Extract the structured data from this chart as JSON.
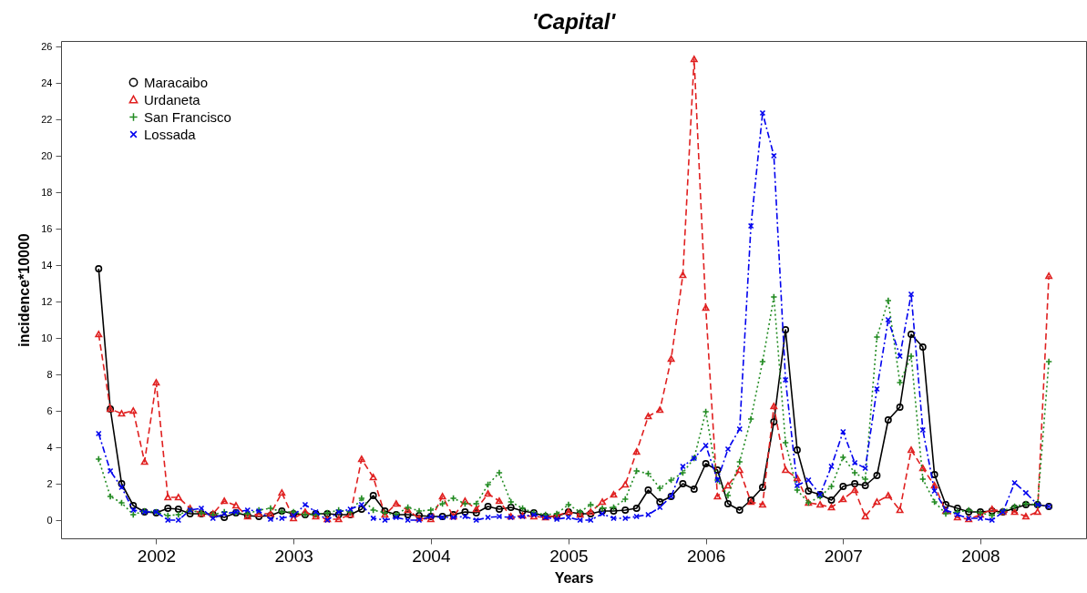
{
  "chart_data": {
    "type": "line",
    "title": "'Capital'",
    "xlabel": "Years",
    "ylabel": "incidence*10000",
    "x": [
      "2001-08",
      "2001-09",
      "2001-10",
      "2001-11",
      "2001-12",
      "2002-01",
      "2002-02",
      "2002-03",
      "2002-04",
      "2002-05",
      "2002-06",
      "2002-07",
      "2002-08",
      "2002-09",
      "2002-10",
      "2002-11",
      "2002-12",
      "2003-01",
      "2003-02",
      "2003-03",
      "2003-04",
      "2003-05",
      "2003-06",
      "2003-07",
      "2003-08",
      "2003-09",
      "2003-10",
      "2003-11",
      "2003-12",
      "2004-01",
      "2004-02",
      "2004-03",
      "2004-04",
      "2004-05",
      "2004-06",
      "2004-07",
      "2004-08",
      "2004-09",
      "2004-10",
      "2004-11",
      "2004-12",
      "2005-01",
      "2005-02",
      "2005-03",
      "2005-04",
      "2005-05",
      "2005-06",
      "2005-07",
      "2005-08",
      "2005-09",
      "2005-10",
      "2005-11",
      "2005-12",
      "2006-01",
      "2006-02",
      "2006-03",
      "2006-04",
      "2006-05",
      "2006-06",
      "2006-07",
      "2006-08",
      "2006-09",
      "2006-10",
      "2006-11",
      "2006-12",
      "2007-01",
      "2007-02",
      "2007-03",
      "2007-04",
      "2007-05",
      "2007-06",
      "2007-07",
      "2007-08",
      "2007-09",
      "2007-10",
      "2007-11",
      "2007-12",
      "2008-01",
      "2008-02",
      "2008-03",
      "2008-04",
      "2008-05",
      "2008-06",
      "2008-07"
    ],
    "series": [
      {
        "name": "Maracaibo",
        "color": "#000000",
        "marker": "circle",
        "line_style": "solid",
        "values": [
          13.8,
          6.1,
          2.0,
          0.8,
          0.45,
          0.4,
          0.65,
          0.6,
          0.35,
          0.35,
          0.3,
          0.15,
          0.4,
          0.25,
          0.2,
          0.25,
          0.5,
          0.35,
          0.3,
          0.35,
          0.35,
          0.3,
          0.3,
          0.6,
          1.35,
          0.5,
          0.3,
          0.3,
          0.25,
          0.2,
          0.2,
          0.3,
          0.45,
          0.4,
          0.75,
          0.6,
          0.7,
          0.5,
          0.4,
          0.2,
          0.2,
          0.45,
          0.35,
          0.35,
          0.5,
          0.5,
          0.55,
          0.65,
          1.65,
          1.0,
          1.3,
          2.0,
          1.7,
          3.1,
          2.75,
          0.9,
          0.55,
          1.1,
          1.8,
          5.4,
          10.45,
          3.85,
          1.6,
          1.4,
          1.1,
          1.85,
          2.0,
          1.9,
          2.45,
          5.5,
          6.2,
          10.2,
          9.5,
          2.5,
          0.85,
          0.65,
          0.45,
          0.45,
          0.5,
          0.45,
          0.65,
          0.85,
          0.85,
          0.75
        ]
      },
      {
        "name": "Urdaneta",
        "color": "#e02020",
        "marker": "triangle",
        "line_style": "dashed",
        "values": [
          10.2,
          6.1,
          5.85,
          6.0,
          3.2,
          7.55,
          1.25,
          1.25,
          0.65,
          0.35,
          0.35,
          1.05,
          0.8,
          0.2,
          0.35,
          0.35,
          1.5,
          0.1,
          0.45,
          0.2,
          0.05,
          0.05,
          0.3,
          3.35,
          2.35,
          0.3,
          0.9,
          0.55,
          0.1,
          0.05,
          1.3,
          0.2,
          1.05,
          0.6,
          1.45,
          1.05,
          0.2,
          0.25,
          0.2,
          0.15,
          0.25,
          0.45,
          0.3,
          0.45,
          1.0,
          1.4,
          1.95,
          3.75,
          5.7,
          6.05,
          8.85,
          13.45,
          25.3,
          11.65,
          1.3,
          1.9,
          2.75,
          1.0,
          0.85,
          6.25,
          2.75,
          2.3,
          0.95,
          0.85,
          0.7,
          1.15,
          1.65,
          0.2,
          1.0,
          1.35,
          0.55,
          3.85,
          2.85,
          1.9,
          0.5,
          0.15,
          0.05,
          0.3,
          0.6,
          0.45,
          0.45,
          0.2,
          0.45,
          13.4
        ]
      },
      {
        "name": "San Francisco",
        "color": "#228b22",
        "marker": "cross",
        "line_style": "dotted",
        "values": [
          3.35,
          1.3,
          0.95,
          0.3,
          0.5,
          0.45,
          0.25,
          0.3,
          0.55,
          0.4,
          0.3,
          0.45,
          0.4,
          0.35,
          0.55,
          0.65,
          0.45,
          0.45,
          0.3,
          0.3,
          0.4,
          0.55,
          0.45,
          1.2,
          0.55,
          0.4,
          0.3,
          0.7,
          0.5,
          0.55,
          0.9,
          1.2,
          0.9,
          0.9,
          1.95,
          2.6,
          1.0,
          0.65,
          0.4,
          0.3,
          0.35,
          0.85,
          0.45,
          0.85,
          0.65,
          0.7,
          1.15,
          2.7,
          2.55,
          1.75,
          2.2,
          2.6,
          3.4,
          5.95,
          2.2,
          1.35,
          3.2,
          5.55,
          8.7,
          12.25,
          4.25,
          1.65,
          0.95,
          1.3,
          1.85,
          3.45,
          2.6,
          2.25,
          10.05,
          12.05,
          7.55,
          9.0,
          2.25,
          1.0,
          0.35,
          0.45,
          0.55,
          0.4,
          0.25,
          0.5,
          0.75,
          0.9,
          0.85,
          8.7
        ]
      },
      {
        "name": "Lossada",
        "color": "#0000ee",
        "marker": "x",
        "line_style": "dashdot",
        "values": [
          4.75,
          2.7,
          1.8,
          0.55,
          0.45,
          0.45,
          0.0,
          0.0,
          0.55,
          0.65,
          0.1,
          0.35,
          0.45,
          0.55,
          0.5,
          0.05,
          0.1,
          0.25,
          0.85,
          0.45,
          0.0,
          0.45,
          0.6,
          0.85,
          0.1,
          0.0,
          0.15,
          0.0,
          0.0,
          0.2,
          0.15,
          0.15,
          0.2,
          0.0,
          0.15,
          0.2,
          0.15,
          0.2,
          0.3,
          0.15,
          0.05,
          0.15,
          0.0,
          0.0,
          0.35,
          0.1,
          0.1,
          0.2,
          0.3,
          0.7,
          1.3,
          2.95,
          3.4,
          4.1,
          2.2,
          3.9,
          5.0,
          16.15,
          22.35,
          20.0,
          7.7,
          1.9,
          2.2,
          1.4,
          2.95,
          4.85,
          3.15,
          2.85,
          7.2,
          11.0,
          9.0,
          12.4,
          4.95,
          1.6,
          0.55,
          0.3,
          0.1,
          0.1,
          0.0,
          0.45,
          2.05,
          1.5,
          0.85,
          0.75
        ]
      }
    ],
    "xlim": [
      "2001-04-23",
      "2008-10-08"
    ],
    "xticks": [
      {
        "value": "2002-01-01",
        "label": "2002"
      },
      {
        "value": "2003-01-01",
        "label": "2003"
      },
      {
        "value": "2004-01-01",
        "label": "2004"
      },
      {
        "value": "2005-01-01",
        "label": "2005"
      },
      {
        "value": "2006-01-01",
        "label": "2006"
      },
      {
        "value": "2007-01-01",
        "label": "2007"
      },
      {
        "value": "2008-01-01",
        "label": "2008"
      }
    ],
    "ylim": [
      -1.0,
      26.3
    ],
    "yticks": [
      0,
      2,
      4,
      6,
      8,
      10,
      12,
      14,
      16,
      18,
      20,
      22,
      24,
      26
    ],
    "grid": false,
    "legend": "top left"
  }
}
